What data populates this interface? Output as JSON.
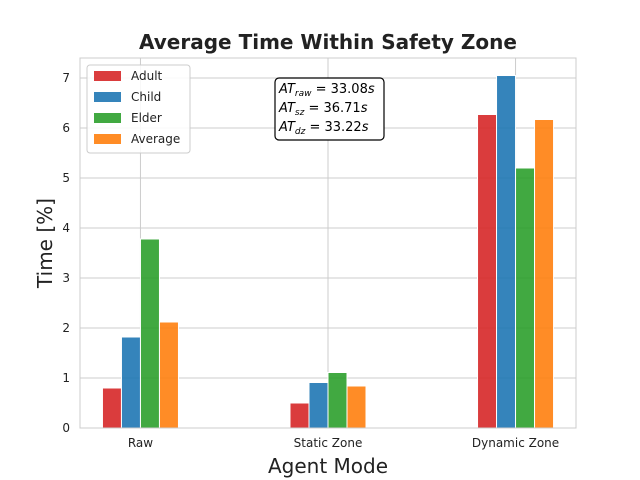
{
  "chart_data": {
    "type": "bar",
    "title": "Average Time Within Safety Zone",
    "xlabel": "Agent Mode",
    "ylabel": "Time [%]",
    "categories": [
      "Raw",
      "Static Zone",
      "Dynamic Zone"
    ],
    "ylim": [
      0,
      7.4
    ],
    "yticks": [
      0,
      1,
      2,
      3,
      4,
      5,
      6,
      7
    ],
    "grid": true,
    "legend_position": "top-left",
    "series": [
      {
        "name": "Adult",
        "color": "#d62728",
        "values": [
          0.8,
          0.5,
          6.27
        ]
      },
      {
        "name": "Child",
        "color": "#1f77b4",
        "values": [
          1.82,
          0.91,
          7.05
        ]
      },
      {
        "name": "Elder",
        "color": "#2ca02c",
        "values": [
          3.78,
          1.11,
          5.2
        ]
      },
      {
        "name": "Average",
        "color": "#ff7f0e",
        "values": [
          2.12,
          0.84,
          6.17
        ]
      }
    ],
    "annotation": {
      "lines": [
        {
          "var": "AT",
          "sub": "raw",
          "value": " = 33.08",
          "unit": "s"
        },
        {
          "var": "AT",
          "sub": "sz",
          "value": " = 36.71",
          "unit": "s"
        },
        {
          "var": "AT",
          "sub": "dz",
          "value": " = 33.22",
          "unit": "s"
        }
      ]
    }
  }
}
